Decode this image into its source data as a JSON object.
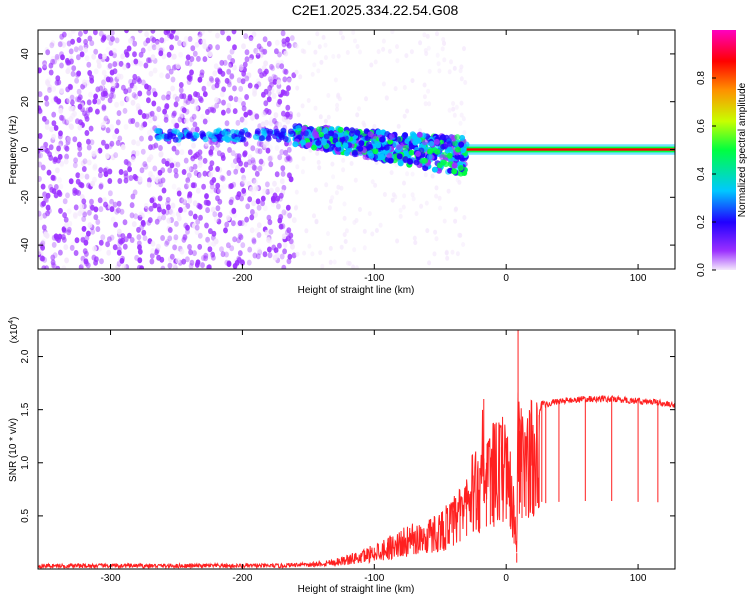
{
  "title": "C2E1.2025.334.22.54.G08",
  "chart_data": [
    {
      "type": "heatmap",
      "xlabel": "Height of straight line (km)",
      "ylabel": "Frequency (Hz)",
      "xlim": [
        -355,
        128
      ],
      "ylim": [
        -50,
        50
      ],
      "x_ticks": [
        -300,
        -200,
        -100,
        0,
        100
      ],
      "x_tick_labels": [
        "-300",
        "-200",
        "-100",
        "0",
        "100"
      ],
      "y_ticks": [
        -40,
        -20,
        0,
        20,
        40
      ],
      "y_tick_labels": [
        "-40",
        "-20",
        "0",
        "20",
        "40"
      ],
      "colorbar": {
        "label": "Normalized spectral amplitude",
        "range": [
          0,
          1
        ],
        "ticks": [
          0.0,
          0.2,
          0.4,
          0.6,
          0.8
        ],
        "tick_labels": [
          "0.0",
          "0.2",
          "0.4",
          "0.6",
          "0.8"
        ],
        "colors": [
          "#f4e8fc",
          "#9b30ff",
          "#2000ff",
          "#00c8ff",
          "#00ff40",
          "#c8ff00",
          "#ff9000",
          "#ff0000",
          "#ff00c0"
        ]
      },
      "regions": [
        {
          "x_range": [
            -355,
            -160
          ],
          "freq_range": [
            -50,
            50
          ],
          "amplitude": 0.1
        },
        {
          "x_range": [
            -160,
            -30
          ],
          "freq_center": [
            6,
            -3
          ],
          "freq_halfwidth": 4,
          "amplitude": 0.3
        },
        {
          "x_range": [
            -30,
            128
          ],
          "freq_center": [
            0,
            0
          ],
          "freq_halfwidth": 1,
          "amplitude": 0.85
        }
      ],
      "grid": false
    },
    {
      "type": "line",
      "xlabel": "Height of straight line (km)",
      "ylabel": "SNR (10 * v/v)",
      "y_multiplier": "(x10",
      "y_multiplier_exp": "4",
      "xlim": [
        -355,
        128
      ],
      "ylim": [
        0,
        2.25
      ],
      "x_ticks": [
        -300,
        -200,
        -100,
        0,
        100
      ],
      "x_tick_labels": [
        "-300",
        "-200",
        "-100",
        "0",
        "100"
      ],
      "y_ticks": [
        0.5,
        1.0,
        1.5,
        2.0
      ],
      "y_tick_labels": [
        "0.5",
        "1.0",
        "1.5",
        "2.0"
      ],
      "color": "#ff2020",
      "series": [
        {
          "x": [
            -355,
            -300,
            -250,
            -200,
            -170,
            -150,
            -130,
            -110,
            -100,
            -90,
            -80,
            -70,
            -60,
            -50,
            -40,
            -35,
            -30,
            -25,
            -20,
            -17,
            -15,
            -12,
            -10,
            -5,
            0,
            3,
            6,
            8,
            9,
            10,
            12,
            15,
            20,
            25,
            27,
            30,
            40,
            60,
            80,
            100,
            115,
            128
          ],
          "y": [
            0.03,
            0.03,
            0.03,
            0.03,
            0.03,
            0.05,
            0.08,
            0.14,
            0.2,
            0.25,
            0.3,
            0.35,
            0.38,
            0.45,
            0.55,
            0.65,
            0.78,
            0.88,
            0.95,
            1.6,
            1.0,
            1.05,
            1.1,
            1.15,
            1.18,
            1.0,
            0.6,
            0.15,
            2.25,
            1.3,
            1.2,
            1.25,
            1.3,
            1.45,
            1.58,
            1.55,
            1.58,
            1.6,
            1.6,
            1.58,
            1.57,
            1.53
          ]
        }
      ],
      "grid": false
    }
  ]
}
